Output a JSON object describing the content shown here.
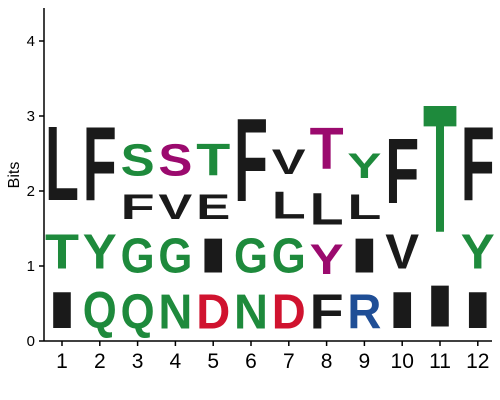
{
  "chart_data": {
    "type": "sequence-logo",
    "ylabel": "Bits",
    "ylim": [
      0,
      4.5
    ],
    "yticks": [
      "0",
      "1",
      "2",
      "3",
      "4"
    ],
    "positions": [
      "1",
      "2",
      "3",
      "4",
      "5",
      "6",
      "7",
      "8",
      "9",
      "10",
      "11",
      "12"
    ],
    "colors": {
      "hydrophobic": "#1a1a1a",
      "polar": "#1e8a3c",
      "acidic": "#d0132f",
      "basic": "#1f4e96",
      "hydroxyl": "#9b0a6e"
    },
    "stacks": [
      [
        {
          "letter": "I",
          "bits": 0.8,
          "class": "hydrophobic"
        },
        {
          "letter": "T",
          "bits": 0.75,
          "class": "polar"
        },
        {
          "letter": "L",
          "bits": 1.6,
          "class": "hydrophobic"
        }
      ],
      [
        {
          "letter": "Q",
          "bits": 0.8,
          "class": "polar"
        },
        {
          "letter": "Y",
          "bits": 0.75,
          "class": "polar"
        },
        {
          "letter": "F",
          "bits": 1.6,
          "class": "hydrophobic"
        }
      ],
      [
        {
          "letter": "Q",
          "bits": 0.75,
          "class": "polar"
        },
        {
          "letter": "G",
          "bits": 0.75,
          "class": "polar"
        },
        {
          "letter": "F",
          "bits": 0.55,
          "class": "hydrophobic"
        },
        {
          "letter": "S",
          "bits": 0.7,
          "class": "polar"
        }
      ],
      [
        {
          "letter": "N",
          "bits": 0.75,
          "class": "polar"
        },
        {
          "letter": "G",
          "bits": 0.75,
          "class": "polar"
        },
        {
          "letter": "V",
          "bits": 0.55,
          "class": "hydrophobic"
        },
        {
          "letter": "S",
          "bits": 0.7,
          "class": "hydroxyl"
        }
      ],
      [
        {
          "letter": "D",
          "bits": 0.75,
          "class": "acidic"
        },
        {
          "letter": "I",
          "bits": 0.75,
          "class": "hydrophobic"
        },
        {
          "letter": "E",
          "bits": 0.55,
          "class": "hydrophobic"
        },
        {
          "letter": "T",
          "bits": 0.7,
          "class": "polar"
        }
      ],
      [
        {
          "letter": "N",
          "bits": 0.75,
          "class": "polar"
        },
        {
          "letter": "G",
          "bits": 0.75,
          "class": "polar"
        },
        {
          "letter": "F",
          "bits": 1.8,
          "class": "hydrophobic"
        }
      ],
      [
        {
          "letter": "D",
          "bits": 0.75,
          "class": "acidic"
        },
        {
          "letter": "G",
          "bits": 0.75,
          "class": "polar"
        },
        {
          "letter": "L",
          "bits": 0.6,
          "class": "hydrophobic"
        },
        {
          "letter": "V",
          "bits": 0.55,
          "class": "hydrophobic"
        }
      ],
      [
        {
          "letter": "F",
          "bits": 0.75,
          "class": "hydrophobic"
        },
        {
          "letter": "Y",
          "bits": 0.65,
          "class": "hydroxyl"
        },
        {
          "letter": "L",
          "bits": 0.7,
          "class": "hydrophobic"
        },
        {
          "letter": "T",
          "bits": 0.9,
          "class": "hydroxyl"
        }
      ],
      [
        {
          "letter": "R",
          "bits": 0.75,
          "class": "basic"
        },
        {
          "letter": "I",
          "bits": 0.75,
          "class": "hydrophobic"
        },
        {
          "letter": "L",
          "bits": 0.55,
          "class": "hydrophobic"
        },
        {
          "letter": "Y",
          "bits": 0.55,
          "class": "polar"
        }
      ],
      [
        {
          "letter": "I",
          "bits": 0.8,
          "class": "hydrophobic"
        },
        {
          "letter": "V",
          "bits": 0.75,
          "class": "hydrophobic"
        },
        {
          "letter": "F",
          "bits": 1.4,
          "class": "hydrophobic"
        }
      ],
      [
        {
          "letter": "I",
          "bits": 0.9,
          "class": "hydrophobic"
        },
        {
          "letter": "T",
          "bits": 2.75,
          "class": "polar"
        }
      ],
      [
        {
          "letter": "I",
          "bits": 0.8,
          "class": "hydrophobic"
        },
        {
          "letter": "Y",
          "bits": 0.75,
          "class": "polar"
        },
        {
          "letter": "F",
          "bits": 1.6,
          "class": "hydrophobic"
        }
      ]
    ]
  }
}
